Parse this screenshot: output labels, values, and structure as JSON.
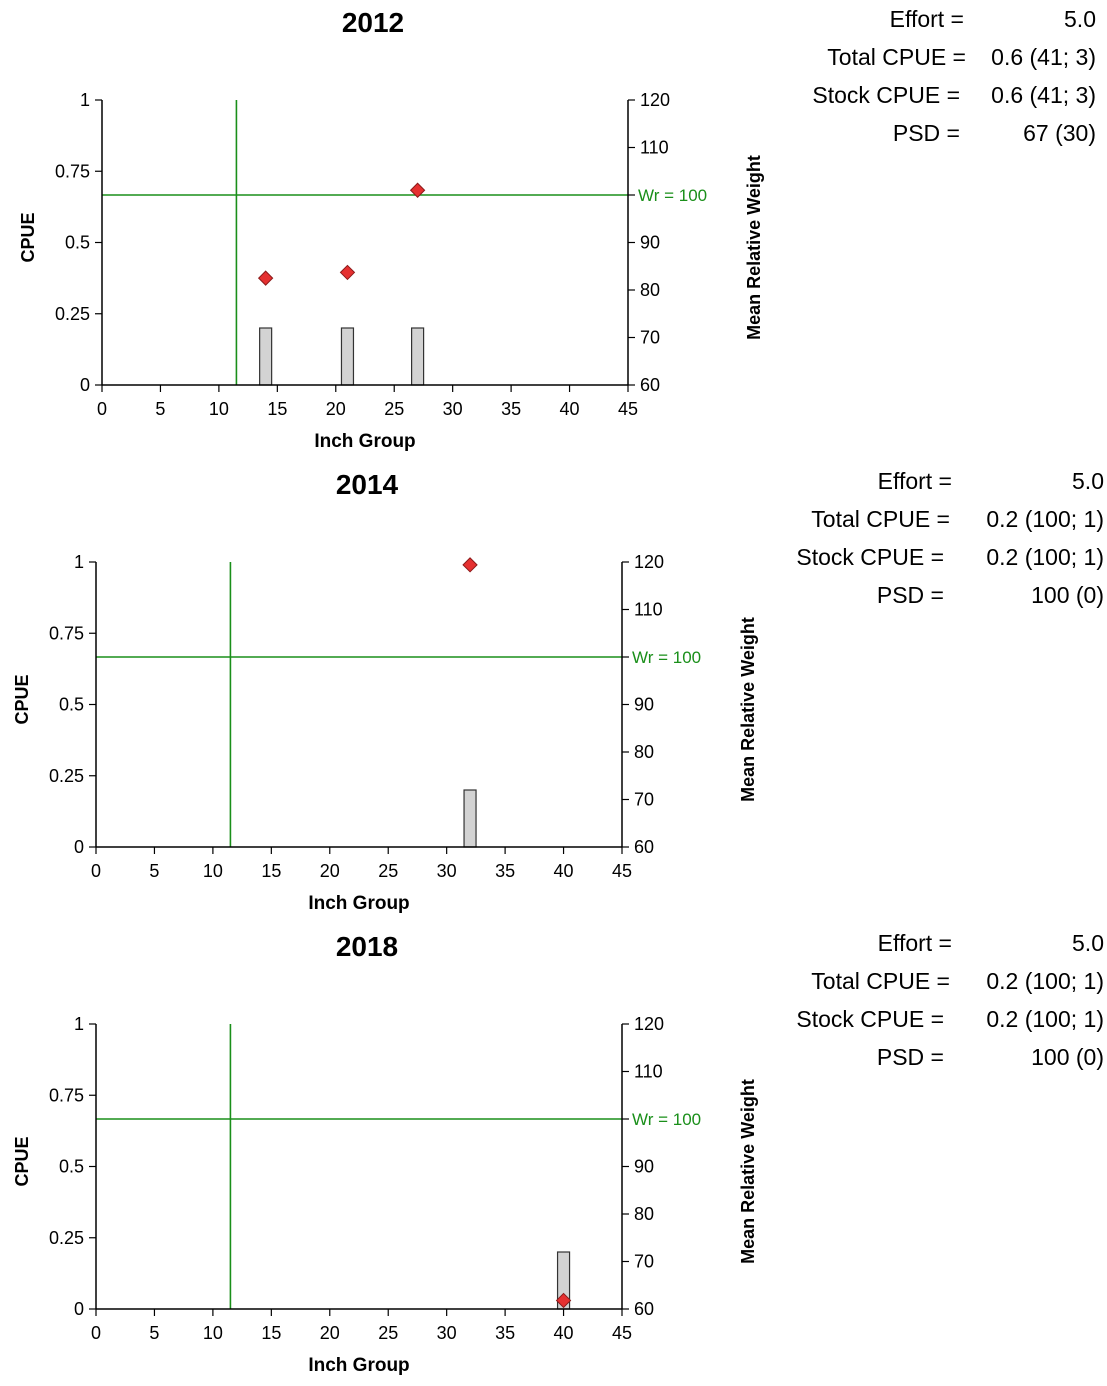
{
  "colors": {
    "bar_fill": "#d3d3d3",
    "bar_stroke": "#333333",
    "marker": "#e53030",
    "marker_stroke": "#8b1a1a",
    "reference_line": "#1a8f1a",
    "axis": "#000000"
  },
  "chart_data": [
    {
      "type": "bar",
      "title": "2012",
      "xlabel": "Inch Group",
      "ylabel": "CPUE",
      "y2label": "Mean Relative Weight",
      "xlim": [
        0,
        45
      ],
      "ylim": [
        0,
        1
      ],
      "y2lim": [
        60,
        120
      ],
      "xticks": [
        "0",
        "5",
        "10",
        "15",
        "20",
        "25",
        "30",
        "35",
        "40",
        "45"
      ],
      "yticks": [
        "0",
        "0.25",
        "0.5",
        "0.75",
        "1"
      ],
      "y2ticks": [
        "60",
        "70",
        "80",
        "90",
        "100",
        "110",
        "120"
      ],
      "vline_x": 11.5,
      "hline_y2": 100,
      "hline_label": "Wr = 100",
      "bars": {
        "x": [
          14,
          21,
          27
        ],
        "y": [
          0.2,
          0.2,
          0.2
        ]
      },
      "markers": {
        "x": [
          14,
          21,
          27
        ],
        "y2": [
          82.5,
          83.7,
          101
        ]
      },
      "grid": false
    },
    {
      "type": "bar",
      "title": "2014",
      "xlabel": "Inch Group",
      "ylabel": "CPUE",
      "y2label": "Mean Relative Weight",
      "xlim": [
        0,
        45
      ],
      "ylim": [
        0,
        1
      ],
      "y2lim": [
        60,
        120
      ],
      "xticks": [
        "0",
        "5",
        "10",
        "15",
        "20",
        "25",
        "30",
        "35",
        "40",
        "45"
      ],
      "yticks": [
        "0",
        "0.25",
        "0.5",
        "0.75",
        "1"
      ],
      "y2ticks": [
        "60",
        "70",
        "80",
        "90",
        "100",
        "110",
        "120"
      ],
      "vline_x": 11.5,
      "hline_y2": 100,
      "hline_label": "Wr = 100",
      "bars": {
        "x": [
          32
        ],
        "y": [
          0.2
        ]
      },
      "markers": {
        "x": [
          32
        ],
        "y2": [
          119.4
        ]
      },
      "grid": false
    },
    {
      "type": "bar",
      "title": "2018",
      "xlabel": "Inch Group",
      "ylabel": "CPUE",
      "y2label": "Mean Relative Weight",
      "xlim": [
        0,
        45
      ],
      "ylim": [
        0,
        1
      ],
      "y2lim": [
        60,
        120
      ],
      "xticks": [
        "0",
        "5",
        "10",
        "15",
        "20",
        "25",
        "30",
        "35",
        "40",
        "45"
      ],
      "yticks": [
        "0",
        "0.25",
        "0.5",
        "0.75",
        "1"
      ],
      "y2ticks": [
        "60",
        "70",
        "80",
        "90",
        "100",
        "110",
        "120"
      ],
      "vline_x": 11.5,
      "hline_y2": 100,
      "hline_label": "Wr = 100",
      "bars": {
        "x": [
          40
        ],
        "y": [
          0.2
        ]
      },
      "markers": {
        "x": [
          40
        ],
        "y2": [
          61.8
        ]
      },
      "grid": false
    }
  ],
  "stats": [
    {
      "effort_label": "Effort =",
      "effort_value": "5.0",
      "total_label": "Total CPUE =",
      "total_value": "0.6 (41; 3)",
      "stock_label": "Stock CPUE =",
      "stock_value": "0.6 (41; 3)",
      "psd_label": "PSD =",
      "psd_value": "67 (30)"
    },
    {
      "effort_label": "Effort =",
      "effort_value": "5.0",
      "total_label": "Total CPUE =",
      "total_value": "0.2 (100; 1)",
      "stock_label": "Stock CPUE =",
      "stock_value": "0.2 (100; 1)",
      "psd_label": "PSD =",
      "psd_value": "100 (0)"
    },
    {
      "effort_label": "Effort =",
      "effort_value": "5.0",
      "total_label": "Total CPUE =",
      "total_value": "0.2 (100; 1)",
      "stock_label": "Stock CPUE =",
      "stock_value": "0.2 (100; 1)",
      "psd_label": "PSD =",
      "psd_value": "100 (0)"
    }
  ]
}
